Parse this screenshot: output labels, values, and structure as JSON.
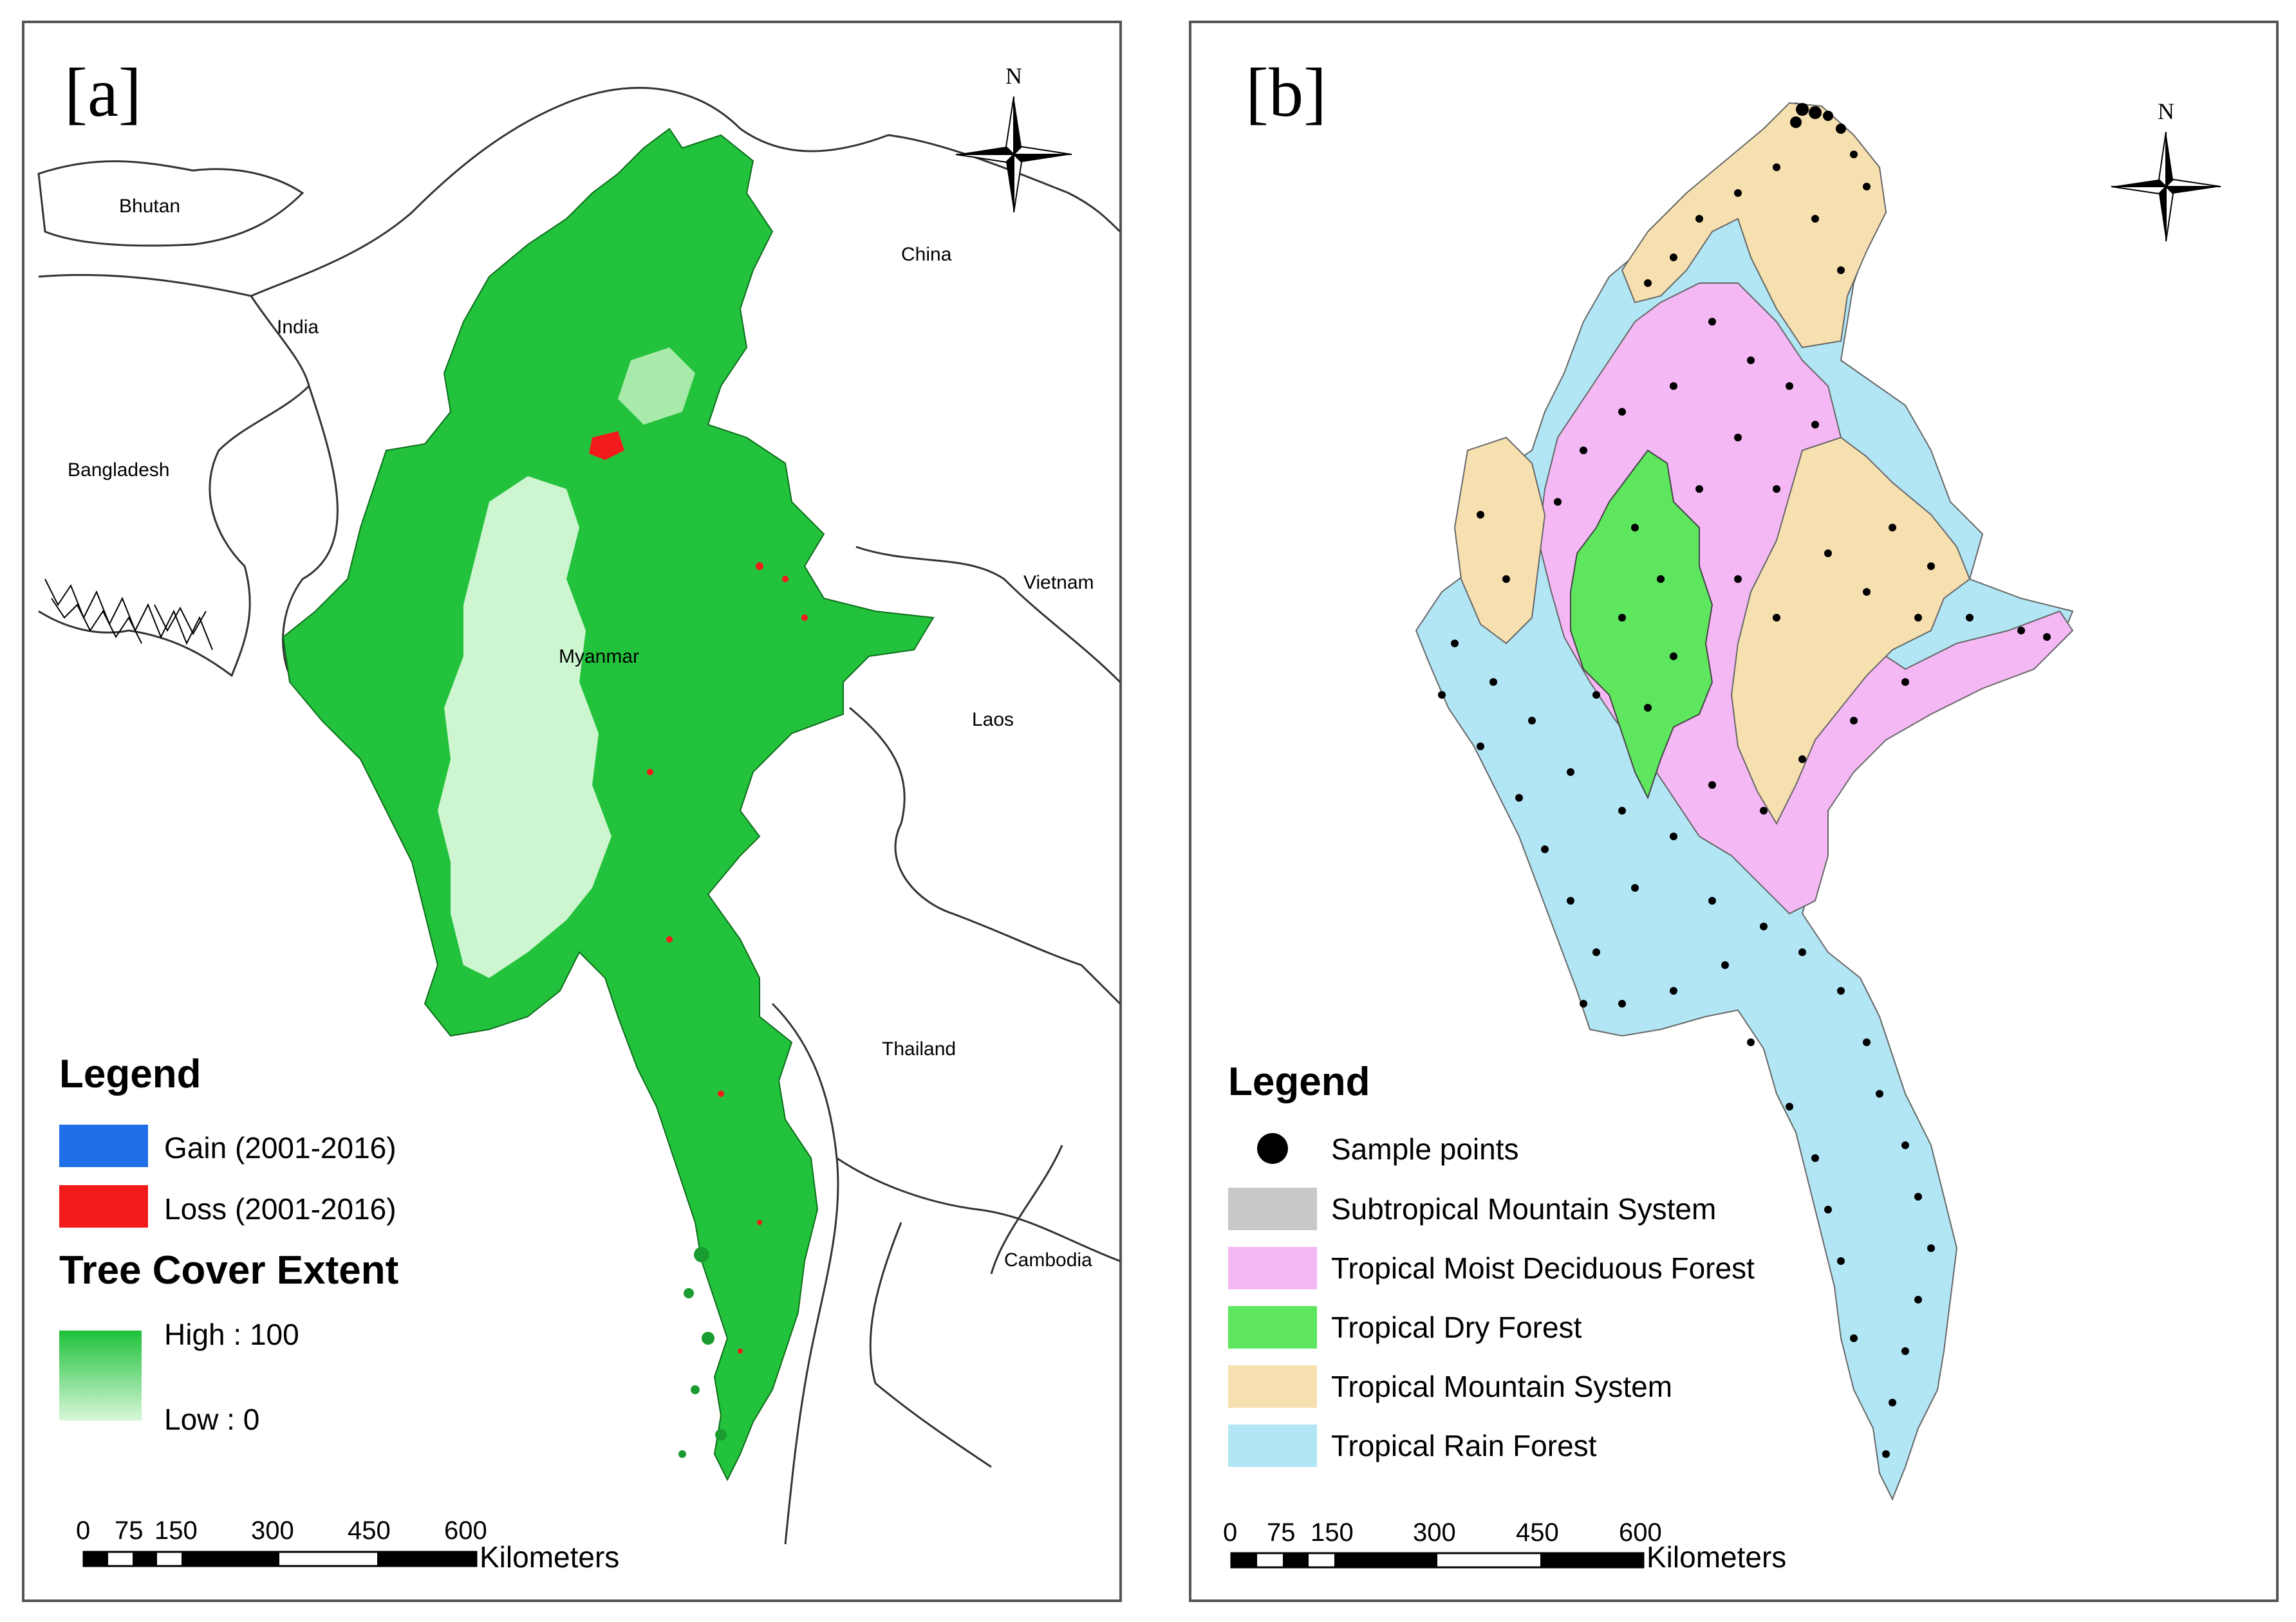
{
  "panel_a": {
    "label": "[a]",
    "countries": [
      "Bhutan",
      "India",
      "China",
      "Bangladesh",
      "Myanmar",
      "Vietnam",
      "Laos",
      "Thailand",
      "Cambodia"
    ],
    "north_label": "N",
    "legend": {
      "title": "Legend",
      "gain": "Gain (2001-2016)",
      "loss": "Loss (2001-2016)",
      "extent_title": "Tree Cover Extent",
      "high": "High : 100",
      "low": "Low : 0"
    },
    "scale": {
      "ticks": [
        "0",
        "75",
        "150",
        "300",
        "450",
        "600"
      ],
      "unit": "Kilometers"
    },
    "colors": {
      "gain": "#1f6fe8",
      "loss": "#f21a1a",
      "high": "#1ec13a",
      "low": "#cdf5cf"
    }
  },
  "panel_b": {
    "label": "[b]",
    "north_label": "N",
    "legend": {
      "title": "Legend",
      "items": [
        "Sample points",
        "Subtropical Mountain System",
        "Tropical Moist Deciduous Forest",
        "Tropical Dry Forest",
        "Tropical Mountain System",
        "Tropical Rain Forest"
      ]
    },
    "scale": {
      "ticks": [
        "0",
        "75",
        "150",
        "300",
        "450",
        "600"
      ],
      "unit": "Kilometers"
    },
    "colors": {
      "subtropical_mountain": "#c8c8c8",
      "moist_deciduous": "#f4b8f4",
      "dry_forest": "#5ee65e",
      "mountain_system": "#f7e0b0",
      "rain_forest": "#b2e6f5"
    }
  }
}
